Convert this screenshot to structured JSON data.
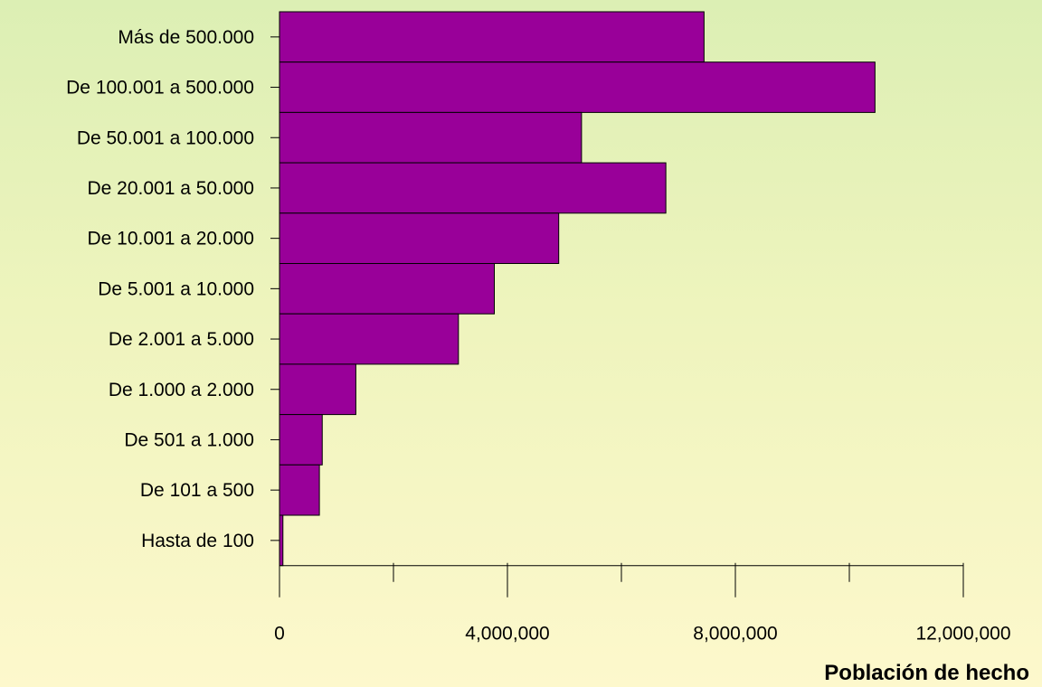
{
  "chart_data": {
    "type": "bar",
    "orientation": "horizontal",
    "categories": [
      "Más de 500.000",
      "De 100.001 a 500.000",
      "De 50.001 a 100.000",
      "De 20.001 a 50.000",
      "De 10.001 a 20.000",
      "De 5.001 a 10.000",
      "De 2.001 a 5.000",
      "De 1.000 a 2.000",
      "De 501 a 1.000",
      "De 101 a 500",
      "Hasta de 100"
    ],
    "values": [
      7450000,
      10450000,
      5300000,
      6780000,
      4900000,
      3770000,
      3140000,
      1340000,
      750000,
      700000,
      60000
    ],
    "xlabel": "Población de hecho",
    "xlim": [
      0,
      12000000
    ],
    "major_ticks": [
      0,
      4000000,
      8000000,
      12000000
    ],
    "tick_labels": [
      "0",
      "4,000,000",
      "8,000,000",
      "12,000,000"
    ],
    "minor_ticks": [
      2000000,
      6000000,
      10000000
    ],
    "grid": false,
    "legend": "none",
    "colors": {
      "bar_fill": "#990099",
      "bar_stroke": "#000000",
      "background_top": "#dcefb4",
      "background_bottom": "#fdf8cc"
    }
  }
}
